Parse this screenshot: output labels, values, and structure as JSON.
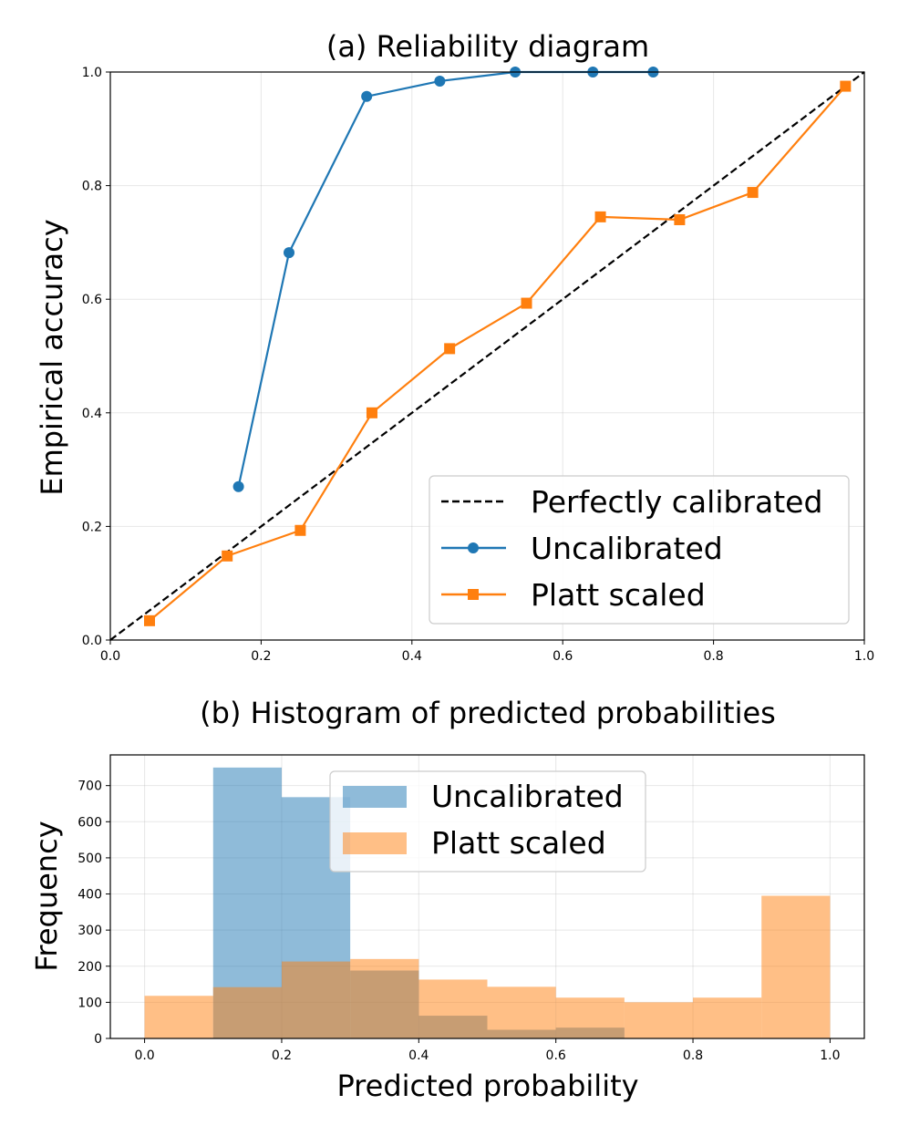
{
  "chart_data": [
    {
      "type": "line",
      "title": "(a) Reliability diagram",
      "xlabel": "",
      "ylabel": "Empirical accuracy",
      "xlim": [
        0.0,
        1.0
      ],
      "ylim": [
        0.0,
        1.0
      ],
      "xticks": [
        "0.0",
        "0.2",
        "0.4",
        "0.6",
        "0.8",
        "1.0"
      ],
      "yticks": [
        "0.0",
        "0.2",
        "0.4",
        "0.6",
        "0.8",
        "1.0"
      ],
      "grid": true,
      "legend_position": "lower-right",
      "series": [
        {
          "name": "Perfectly calibrated",
          "style": "dashed",
          "color": "#000000",
          "x": [
            0.0,
            1.0
          ],
          "y": [
            0.0,
            1.0
          ]
        },
        {
          "name": "Uncalibrated",
          "marker": "circle",
          "color": "#1f77b4",
          "x": [
            0.17,
            0.237,
            0.34,
            0.437,
            0.537,
            0.64,
            0.72
          ],
          "y": [
            0.27,
            0.682,
            0.957,
            0.984,
            1.0,
            1.0,
            1.0
          ]
        },
        {
          "name": "Platt scaled",
          "marker": "square",
          "color": "#ff7f0e",
          "x": [
            0.052,
            0.155,
            0.252,
            0.347,
            0.45,
            0.552,
            0.65,
            0.755,
            0.852,
            0.975
          ],
          "y": [
            0.034,
            0.148,
            0.193,
            0.4,
            0.513,
            0.593,
            0.745,
            0.74,
            0.788,
            0.975
          ]
        }
      ]
    },
    {
      "type": "bar",
      "subtype": "histogram",
      "title": "(b) Histogram of predicted probabilities",
      "xlabel": "Predicted probability",
      "ylabel": "Frequency",
      "xlim": [
        -0.05,
        1.05
      ],
      "ylim": [
        0,
        785
      ],
      "xticks": [
        "0.0",
        "0.2",
        "0.4",
        "0.6",
        "0.8",
        "1.0"
      ],
      "yticks": [
        "0",
        "100",
        "200",
        "300",
        "400",
        "500",
        "600",
        "700"
      ],
      "grid": true,
      "legend_position": "top-center",
      "bin_edges": [
        0.0,
        0.1,
        0.2,
        0.3,
        0.4,
        0.5,
        0.6,
        0.7,
        0.8,
        0.9,
        1.0
      ],
      "series": [
        {
          "name": "Uncalibrated",
          "color": "#1f77b4",
          "values": [
            0,
            750,
            668,
            188,
            63,
            24,
            30,
            0,
            0,
            0
          ]
        },
        {
          "name": "Platt scaled",
          "color": "#ff7f0e",
          "values": [
            118,
            142,
            213,
            220,
            163,
            143,
            113,
            100,
            113,
            395
          ]
        }
      ]
    }
  ]
}
